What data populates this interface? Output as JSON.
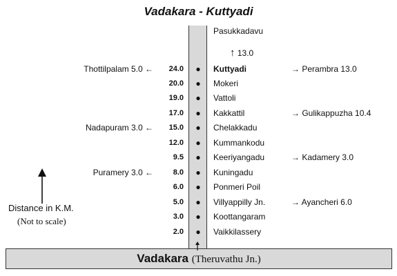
{
  "title": "Vadakara - Kuttyadi",
  "terminus_top": "Pasukkadavu",
  "top_segment_km": "13.0",
  "base": {
    "name": "Vadakara",
    "sub": "(Theruvathu Jn.)"
  },
  "legend": {
    "label": "Distance in K.M.",
    "note": "(Not to scale)"
  },
  "stops": [
    {
      "km": "24.0",
      "name": "Kuttyadi",
      "bold": true,
      "left": "Thottilpalam 5.0",
      "right": "Perambra 13.0"
    },
    {
      "km": "20.0",
      "name": "Mokeri"
    },
    {
      "km": "19.0",
      "name": "Vattoli"
    },
    {
      "km": "17.0",
      "name": "Kakkattil",
      "right": "Gulikappuzha 10.4"
    },
    {
      "km": "15.0",
      "name": "Chelakkadu",
      "left": "Nadapuram 3.0"
    },
    {
      "km": "12.0",
      "name": "Kummankodu"
    },
    {
      "km": "9.5",
      "name": "Keeriyangadu",
      "right": "Kadamery 3.0"
    },
    {
      "km": "8.0",
      "name": "Kuningadu",
      "left": "Puramery 3.0"
    },
    {
      "km": "6.0",
      "name": "Ponmeri Poil"
    },
    {
      "km": "5.0",
      "name": "Villyappilly Jn.",
      "right": "Ayancheri 6.0"
    },
    {
      "km": "3.0",
      "name": "Koottangaram"
    },
    {
      "km": "2.0",
      "name": "Vaikkilassery"
    }
  ]
}
